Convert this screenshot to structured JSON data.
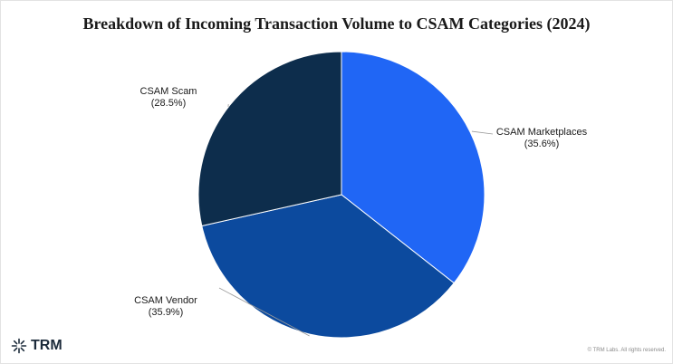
{
  "chart_data": {
    "type": "pie",
    "title": "Breakdown of Incoming Transaction Volume to CSAM Categories (2024)",
    "slices": [
      {
        "label": "CSAM Marketplaces",
        "percent_label": "(35.6%)",
        "value": 35.6,
        "color": "#2066f5"
      },
      {
        "label": "CSAM Vendor",
        "percent_label": "(35.9%)",
        "value": 35.9,
        "color": "#0c4a9e"
      },
      {
        "label": "CSAM Scam",
        "percent_label": "(28.5%)",
        "value": 28.5,
        "color": "#0d2d4c"
      }
    ],
    "start": "12 o'clock",
    "direction": "clockwise",
    "legend": "none",
    "data_labels": "outside"
  },
  "footer": {
    "brand": "TRM",
    "brand_icon": "trm-logo-icon",
    "copyright": "© TRM Labs. All rights reserved."
  }
}
